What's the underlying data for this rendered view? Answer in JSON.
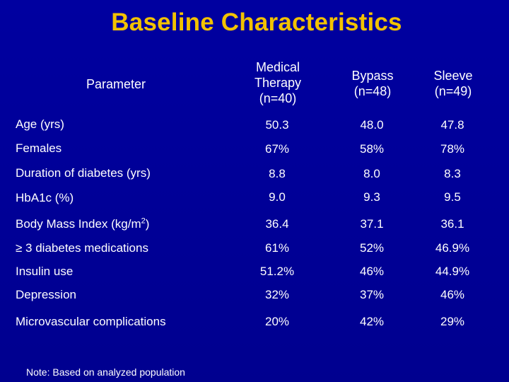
{
  "slide": {
    "title": "Baseline Characteristics",
    "note": "Note: Based on analyzed population"
  },
  "table": {
    "header": {
      "parameter": "Parameter",
      "medical": [
        "Medical",
        "Therapy",
        "(n=40)"
      ],
      "bypass": [
        "Bypass",
        "(n=48)"
      ],
      "sleeve": [
        "Sleeve",
        "(n=49)"
      ]
    },
    "rows": [
      {
        "label": "Age (yrs)",
        "medical": "50.3",
        "bypass": "48.0",
        "sleeve": "47.8"
      },
      {
        "label": "Females",
        "medical": "67%",
        "bypass": "58%",
        "sleeve": "78%"
      },
      {
        "label": "Duration of diabetes (yrs)",
        "medical": "8.8",
        "bypass": "8.0",
        "sleeve": "8.3"
      },
      {
        "label": "HbA1c (%)",
        "medical": "9.0",
        "bypass": "9.3",
        "sleeve": "9.5"
      },
      {
        "label": "Body Mass Index  (kg/m",
        "label_sup": "2",
        "label_suffix": ")",
        "medical": "36.4",
        "bypass": "37.1",
        "sleeve": "36.1"
      },
      {
        "label": "≥ 3 diabetes medications",
        "medical": "61%",
        "bypass": "52%",
        "sleeve": "46.9%"
      },
      {
        "label": "Insulin use",
        "medical": "51.2%",
        "bypass": "46%",
        "sleeve": "44.9%"
      },
      {
        "label": "Depression",
        "medical": "32%",
        "bypass": "37%",
        "sleeve": "46%"
      },
      {
        "label": "Microvascular complications",
        "medical": "20%",
        "bypass": "42%",
        "sleeve": "29%"
      }
    ]
  },
  "colors": {
    "background": "#000099",
    "title": "#f2c200",
    "text": "#ffffff"
  }
}
